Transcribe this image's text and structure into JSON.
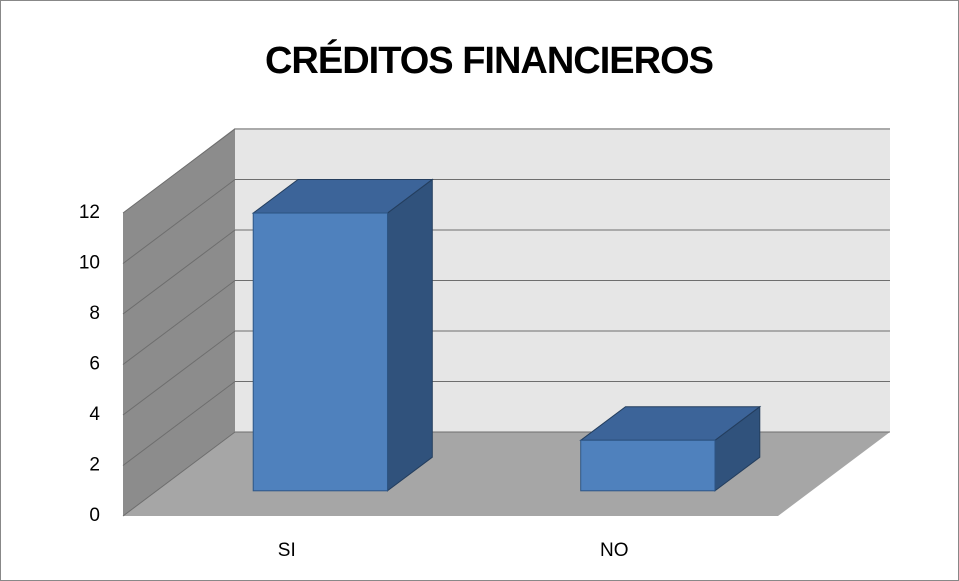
{
  "chart_data": {
    "type": "bar",
    "title": "CRÉDITOS FINANCIEROS",
    "categories": [
      "SI",
      "NO"
    ],
    "values": [
      11,
      2
    ],
    "color": "#4f81bd",
    "ylim": [
      0,
      12
    ],
    "yticks": [
      0,
      2,
      4,
      6,
      8,
      10,
      12
    ],
    "grid": true
  }
}
